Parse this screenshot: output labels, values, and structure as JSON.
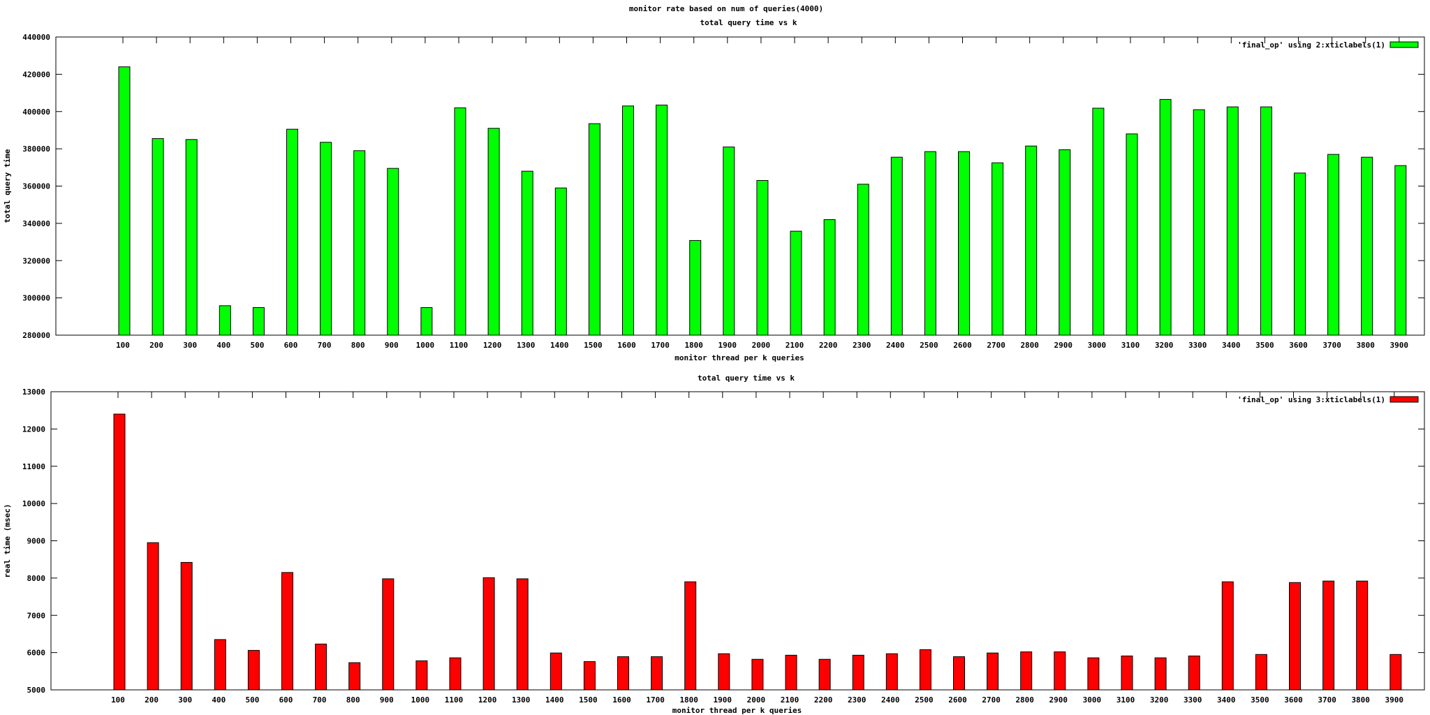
{
  "page_title": "monitor rate based on num of queries(4000)",
  "chart_data": [
    {
      "type": "bar",
      "title": "total query time vs k",
      "xlabel": "monitor thread per k queries",
      "ylabel": "total query time",
      "ylim": [
        280000,
        440000
      ],
      "yticks": [
        "280000",
        "300000",
        "320000",
        "340000",
        "360000",
        "380000",
        "400000",
        "420000",
        "440000"
      ],
      "ytick_values": [
        280000,
        300000,
        320000,
        340000,
        360000,
        380000,
        400000,
        420000,
        440000
      ],
      "categories": [
        "100",
        "200",
        "300",
        "400",
        "500",
        "600",
        "700",
        "800",
        "900",
        "1000",
        "1100",
        "1200",
        "1300",
        "1400",
        "1500",
        "1600",
        "1700",
        "1800",
        "1900",
        "2000",
        "2100",
        "2200",
        "2300",
        "2400",
        "2500",
        "2600",
        "2700",
        "2800",
        "2900",
        "3000",
        "3100",
        "3200",
        "3300",
        "3400",
        "3500",
        "3600",
        "3700",
        "3800",
        "3900"
      ],
      "series": [
        {
          "name": "'final_op' using 2:xticlabels(1)",
          "color": "#00ff00",
          "values": [
            424000,
            385500,
            385000,
            295800,
            294800,
            390500,
            383500,
            379000,
            369500,
            294800,
            402000,
            391000,
            368000,
            359000,
            393500,
            403000,
            403500,
            330800,
            381000,
            363000,
            335800,
            342000,
            361000,
            375500,
            378500,
            378500,
            372500,
            381500,
            379500,
            401800,
            388000,
            406500,
            401000,
            402500,
            402500,
            367000,
            377000,
            375500,
            371000
          ]
        }
      ],
      "grid": false,
      "legend": "top-right"
    },
    {
      "type": "bar",
      "title": "total query time vs k",
      "xlabel": "monitor thread per k queries",
      "ylabel": "real time (msec)",
      "ylim": [
        5000,
        13000
      ],
      "yticks": [
        "5000",
        "6000",
        "7000",
        "8000",
        "9000",
        "10000",
        "11000",
        "12000",
        "13000"
      ],
      "ytick_values": [
        5000,
        6000,
        7000,
        8000,
        9000,
        10000,
        11000,
        12000,
        13000
      ],
      "categories": [
        "100",
        "200",
        "300",
        "400",
        "500",
        "600",
        "700",
        "800",
        "900",
        "1000",
        "1100",
        "1200",
        "1300",
        "1400",
        "1500",
        "1600",
        "1700",
        "1800",
        "1900",
        "2000",
        "2100",
        "2200",
        "2300",
        "2400",
        "2500",
        "2600",
        "2700",
        "2800",
        "2900",
        "3000",
        "3100",
        "3200",
        "3300",
        "3400",
        "3500",
        "3600",
        "3700",
        "3800",
        "3900"
      ],
      "series": [
        {
          "name": "'final_op' using 3:xticlabels(1)",
          "color": "#ff0000",
          "values": [
            12400,
            8950,
            8420,
            6350,
            6060,
            8150,
            6230,
            5730,
            7980,
            5780,
            5860,
            8010,
            7980,
            5990,
            5760,
            5890,
            5890,
            7900,
            5970,
            5820,
            5930,
            5820,
            5930,
            5970,
            6080,
            5890,
            5990,
            6020,
            6020,
            5860,
            5910,
            5860,
            5910,
            7900,
            5950,
            7880,
            7920,
            7920,
            5950
          ]
        }
      ],
      "grid": false,
      "legend": "top-right"
    }
  ]
}
